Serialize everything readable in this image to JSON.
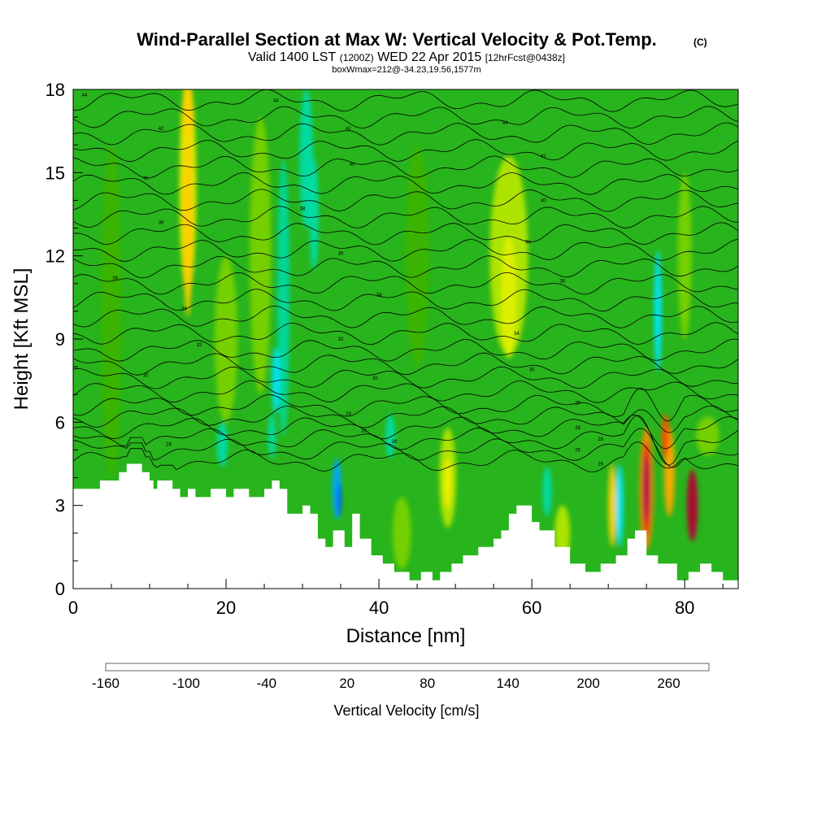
{
  "chart_data": {
    "type": "heatmap",
    "title": "Wind-Parallel Section at Max W: Vertical Velocity & Pot.Temp.",
    "title_mark": "(C)",
    "subtitle_parts": [
      "Valid 1400 LST",
      "(1200Z)",
      "WED 22 Apr 2015",
      "[12hrFcst@0438z]"
    ],
    "info_line": "boxWmax=212@-34.23,19.56,1577m",
    "xlabel": "Distance [nm]",
    "ylabel": "Height [Kft MSL]",
    "xlim": [
      0,
      87
    ],
    "ylim": [
      0,
      18
    ],
    "x_ticks": [
      0,
      20,
      40,
      60,
      80
    ],
    "x_tick_labels": [
      "0",
      "20",
      "40",
      "60",
      "80"
    ],
    "y_ticks": [
      0,
      3,
      6,
      9,
      12,
      15,
      18
    ],
    "y_tick_labels": [
      "0",
      "3",
      "6",
      "9",
      "12",
      "15",
      "18"
    ],
    "colorbar": {
      "label": "Vertical Velocity [cm/s]",
      "tick_labels": [
        "-160",
        "-100",
        "-40",
        "20",
        "80",
        "140",
        "200",
        "260"
      ],
      "tick_values": [
        -160,
        -100,
        -40,
        20,
        80,
        140,
        200,
        260
      ],
      "colors": [
        "#0000ff",
        "#0040ff",
        "#0080ff",
        "#00b4ff",
        "#00e6ff",
        "#00dcaa",
        "#00c864",
        "#18b418",
        "#3cb400",
        "#78d200",
        "#b4e600",
        "#f0f000",
        "#ffd200",
        "#ffaa00",
        "#ff7800",
        "#ff5000",
        "#ff1e00",
        "#dc0014",
        "#b40032",
        "#8c0050"
      ],
      "range": [
        -160,
        290
      ]
    },
    "background_color": "#28b41c",
    "terrain": {
      "x": [
        0,
        0.5,
        0.5,
        3.5,
        3.5,
        6,
        6,
        7,
        7,
        9,
        9,
        10,
        10,
        10.5,
        10.5,
        11,
        11,
        13,
        13,
        14,
        14,
        15,
        15,
        16,
        16,
        18,
        18,
        20,
        20,
        21,
        21,
        23,
        23,
        25,
        25,
        26,
        26,
        27,
        27,
        28,
        28,
        30,
        30,
        31,
        31,
        32,
        32,
        33,
        33,
        34,
        34,
        35.5,
        35.5,
        36.5,
        36.5,
        37.5,
        37.5,
        39,
        39,
        40.5,
        40.5,
        42,
        42,
        44,
        44,
        45.5,
        45.5,
        47,
        47,
        48,
        48,
        49.5,
        49.5,
        51,
        51,
        53,
        53,
        55,
        55,
        56,
        56,
        57,
        57,
        58,
        58,
        60,
        60,
        61,
        61,
        63,
        63,
        65,
        65,
        67,
        67,
        69,
        69,
        71,
        71,
        72.5,
        72.5,
        73.5,
        73.5,
        75,
        75,
        76.5,
        76.5,
        79,
        79,
        80.5,
        80.5,
        82,
        82,
        83.5,
        83.5,
        85,
        85,
        87
      ],
      "h": [
        3.6,
        3.6,
        3.6,
        3.6,
        3.9,
        3.9,
        4.2,
        4.2,
        4.5,
        4.5,
        4.2,
        4.2,
        3.9,
        3.9,
        3.6,
        3.6,
        3.9,
        3.9,
        3.6,
        3.6,
        3.3,
        3.3,
        3.6,
        3.6,
        3.3,
        3.3,
        3.6,
        3.6,
        3.3,
        3.3,
        3.6,
        3.6,
        3.3,
        3.3,
        3.6,
        3.6,
        3.9,
        3.9,
        3.6,
        3.6,
        2.7,
        2.7,
        3.0,
        3.0,
        2.7,
        2.7,
        1.8,
        1.8,
        1.5,
        1.5,
        2.1,
        2.1,
        1.5,
        1.5,
        2.7,
        2.7,
        1.8,
        1.8,
        1.2,
        1.2,
        0.9,
        0.9,
        0.6,
        0.6,
        0.3,
        0.3,
        0.6,
        0.6,
        0.3,
        0.3,
        0.6,
        0.6,
        0.9,
        0.9,
        1.2,
        1.2,
        1.5,
        1.5,
        1.8,
        1.8,
        2.1,
        2.1,
        2.7,
        2.7,
        3.0,
        3.0,
        2.4,
        2.4,
        2.1,
        2.1,
        1.5,
        1.5,
        0.9,
        0.9,
        0.6,
        0.6,
        0.9,
        0.9,
        1.2,
        1.2,
        1.8,
        1.8,
        2.1,
        2.1,
        1.2,
        1.2,
        0.9,
        0.9,
        0.3,
        0.3,
        0.6,
        0.6,
        0.9,
        0.9,
        0.6,
        0.6,
        0.3,
        0.3,
        0.3
      ]
    },
    "isentrope_labels": [
      {
        "x": 1.5,
        "y": 17.8,
        "text": "44"
      },
      {
        "x": 11.5,
        "y": 16.6,
        "text": "42"
      },
      {
        "x": 9.5,
        "y": 14.8,
        "text": "40"
      },
      {
        "x": 11.5,
        "y": 13.2,
        "text": "38"
      },
      {
        "x": 5.5,
        "y": 11.2,
        "text": "36"
      },
      {
        "x": 14.5,
        "y": 10.1,
        "text": "34"
      },
      {
        "x": 16.5,
        "y": 8.8,
        "text": "32"
      },
      {
        "x": 9.5,
        "y": 7.7,
        "text": "30"
      },
      {
        "x": 12.5,
        "y": 5.2,
        "text": "28"
      },
      {
        "x": 26.5,
        "y": 17.6,
        "text": "44"
      },
      {
        "x": 36,
        "y": 16.6,
        "text": "42"
      },
      {
        "x": 36.5,
        "y": 15.3,
        "text": "40"
      },
      {
        "x": 30,
        "y": 13.7,
        "text": "38"
      },
      {
        "x": 35,
        "y": 12.1,
        "text": "36"
      },
      {
        "x": 40,
        "y": 10.6,
        "text": "34"
      },
      {
        "x": 35,
        "y": 9.0,
        "text": "32"
      },
      {
        "x": 39.5,
        "y": 7.6,
        "text": "30"
      },
      {
        "x": 36,
        "y": 6.3,
        "text": "29"
      },
      {
        "x": 38,
        "y": 5.7,
        "text": "28"
      },
      {
        "x": 42,
        "y": 5.3,
        "text": "28"
      },
      {
        "x": 56.5,
        "y": 16.8,
        "text": "44"
      },
      {
        "x": 61.5,
        "y": 15.6,
        "text": "42"
      },
      {
        "x": 61.5,
        "y": 14.0,
        "text": "40"
      },
      {
        "x": 59.5,
        "y": 12.5,
        "text": "38"
      },
      {
        "x": 64,
        "y": 11.1,
        "text": "36"
      },
      {
        "x": 58,
        "y": 9.2,
        "text": "34"
      },
      {
        "x": 60,
        "y": 7.9,
        "text": "30"
      },
      {
        "x": 66,
        "y": 6.7,
        "text": "29"
      },
      {
        "x": 66,
        "y": 5.8,
        "text": "28"
      },
      {
        "x": 69,
        "y": 5.4,
        "text": "28"
      },
      {
        "x": 66,
        "y": 5.0,
        "text": "26"
      },
      {
        "x": 69,
        "y": 4.5,
        "text": "26"
      }
    ]
  }
}
